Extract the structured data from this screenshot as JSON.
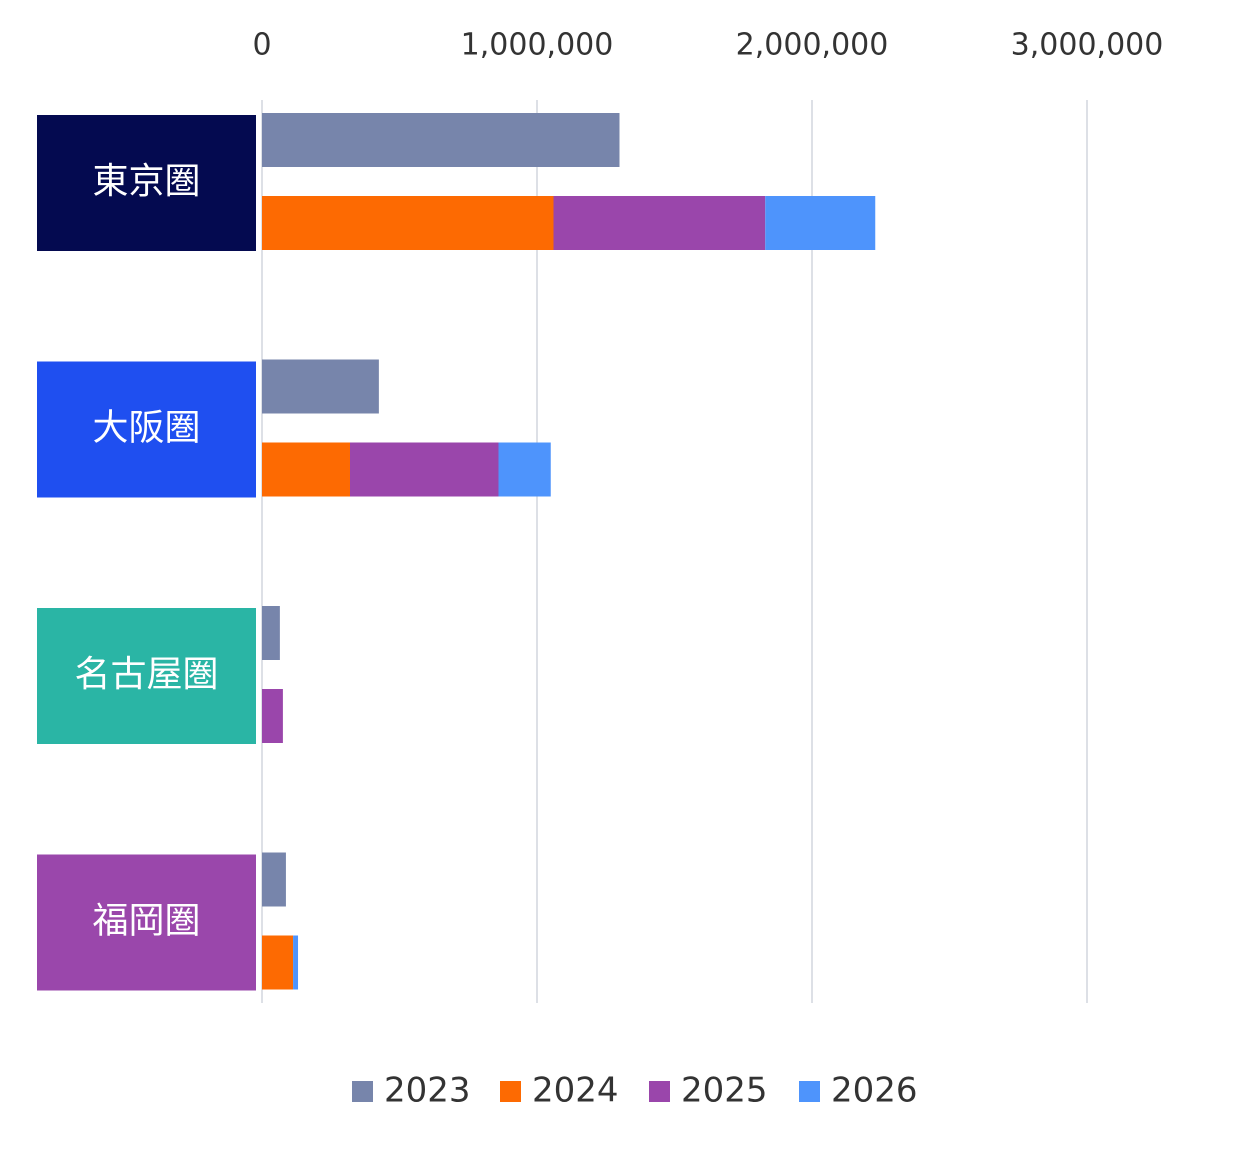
{
  "chart_data": {
    "type": "bar",
    "orientation": "horizontal",
    "categories": [
      "東京圏",
      "大阪圏",
      "名古屋圏",
      "福岡圏"
    ],
    "category_colors": [
      "#040a50",
      "#1f4ff0",
      "#2ab5a5",
      "#9a47ab"
    ],
    "series": [
      {
        "name": "2023",
        "color": "#7785ab",
        "values": [
          1300000,
          425000,
          65000,
          87000
        ]
      },
      {
        "name": "2024",
        "color": "#fd6a02",
        "values": [
          1060000,
          320000,
          0,
          113000
        ]
      },
      {
        "name": "2025",
        "color": "#9a46ab",
        "values": [
          770000,
          540000,
          76000,
          0
        ]
      },
      {
        "name": "2026",
        "color": "#4e94fc",
        "values": [
          400000,
          190000,
          0,
          18000
        ]
      }
    ],
    "xlim": [
      0,
      3000000
    ],
    "xticks": [
      0,
      {
        "value": 1000000,
        "label": "1,000,000"
      },
      {
        "value": 2000000,
        "label": "2,000,000"
      },
      {
        "value": 3000000,
        "label": "3,000,000"
      }
    ],
    "grid": true,
    "legend": "bottom"
  }
}
